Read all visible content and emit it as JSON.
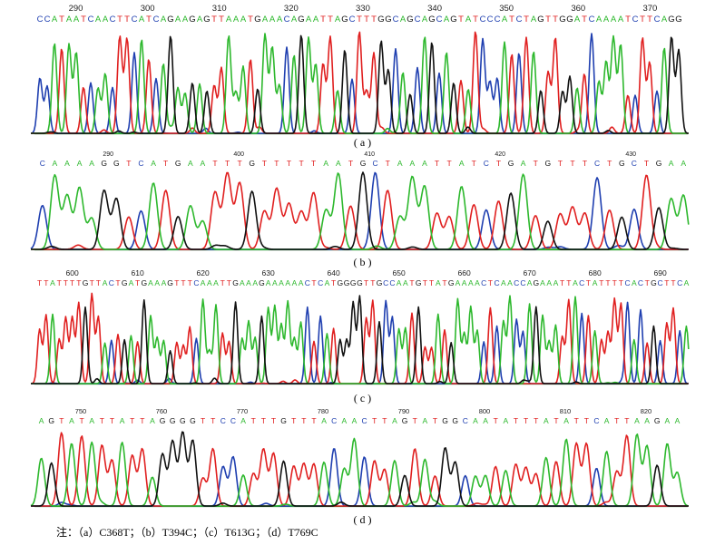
{
  "colors": {
    "A": "#2db82d",
    "C": "#1f3fb0",
    "G": "#111111",
    "T": "#e02020",
    "axis": "#2a7a2a"
  },
  "panels": [
    {
      "id": "a",
      "caption": "( a )",
      "ticks": [
        "290",
        "300",
        "310",
        "320",
        "330",
        "340",
        "350",
        "360",
        "370"
      ],
      "sequence": "CCATAATCAACTTCATCAGAAGAGTTAAATGAAACAGAATTAGCTTTGGCAGCAGCAGTATCCCATCTAGTTGGATCAAAATCTTCAGG"
    },
    {
      "id": "b",
      "caption": "( b )",
      "ticks": [
        "290",
        "400",
        "410",
        "420",
        "430"
      ],
      "sequence": "CAAAAGGTCATGAATTTGTTTTTAATGCTAAATTATCTGATGTTTCTGCTGAA"
    },
    {
      "id": "c",
      "caption": "( c )",
      "ticks": [
        "600",
        "610",
        "620",
        "630",
        "640",
        "650",
        "660",
        "670",
        "680",
        "690"
      ],
      "sequence": "TTATTTTGTTACTGATGAAAGTTTCAAATTGAAAGAAAAAACTCATGGGGTTGCCAATGTTATGAAAACTCAACCAGAAATTACTATTTTCACTGCTTCA"
    },
    {
      "id": "d",
      "caption": "( d )",
      "ticks": [
        "750",
        "760",
        "770",
        "780",
        "790",
        "800",
        "810",
        "820"
      ],
      "sequence": "AGTATATTATTAGGGGTTCCATTTGTTTACAACTTAGTATGGCAATATTTATATTCATTAAGAA"
    }
  ],
  "note": "注：（a）C368T；（b）T394C；（c）T613G；（d）T769C"
}
